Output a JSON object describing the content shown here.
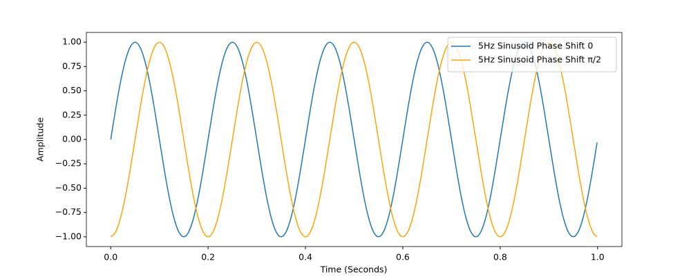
{
  "chart_data": {
    "type": "line",
    "xlabel": "Time (Seconds)",
    "ylabel": "Amplitude",
    "x": [
      0,
      0.01,
      0.02,
      0.03,
      0.04,
      0.05,
      0.06,
      0.07,
      0.08,
      0.09,
      0.1,
      0.11,
      0.12,
      0.13,
      0.14,
      0.15,
      0.16,
      0.17,
      0.18,
      0.19,
      0.2,
      0.21,
      0.22,
      0.23,
      0.24,
      0.25,
      0.26,
      0.27,
      0.28,
      0.29,
      0.3,
      0.31,
      0.32,
      0.33,
      0.34,
      0.35,
      0.36,
      0.37,
      0.38,
      0.39,
      0.4,
      0.41,
      0.42,
      0.43,
      0.44,
      0.45,
      0.46,
      0.47,
      0.48,
      0.49,
      0.5,
      0.51,
      0.52,
      0.53,
      0.54,
      0.55,
      0.56,
      0.57,
      0.58,
      0.59,
      0.6,
      0.61,
      0.62,
      0.63,
      0.64,
      0.65,
      0.66,
      0.67,
      0.68,
      0.69,
      0.7,
      0.71,
      0.72,
      0.73,
      0.74,
      0.75,
      0.76,
      0.77,
      0.78,
      0.79,
      0.8,
      0.81,
      0.82,
      0.83,
      0.84,
      0.85,
      0.86,
      0.87,
      0.88,
      0.89,
      0.9,
      0.91,
      0.92,
      0.93,
      0.94,
      0.95,
      0.96,
      0.97,
      0.98,
      0.99,
      0.999
    ],
    "series": [
      {
        "name": "5Hz Sinusoid Phase Shift 0",
        "color": "#1f77b4",
        "values": [
          0,
          0.309,
          0.588,
          0.809,
          0.951,
          1,
          0.951,
          0.809,
          0.588,
          0.309,
          0,
          -0.309,
          -0.588,
          -0.809,
          -0.951,
          -1,
          -0.951,
          -0.809,
          -0.588,
          -0.309,
          0,
          0.309,
          0.588,
          0.809,
          0.951,
          1,
          0.951,
          0.809,
          0.588,
          0.309,
          0,
          -0.309,
          -0.588,
          -0.809,
          -0.951,
          -1,
          -0.951,
          -0.809,
          -0.588,
          -0.309,
          0,
          0.309,
          0.588,
          0.809,
          0.951,
          1,
          0.951,
          0.809,
          0.588,
          0.309,
          0,
          -0.309,
          -0.588,
          -0.809,
          -0.951,
          -1,
          -0.951,
          -0.809,
          -0.588,
          -0.309,
          0,
          0.309,
          0.588,
          0.809,
          0.951,
          1,
          0.951,
          0.809,
          0.588,
          0.309,
          0,
          -0.309,
          -0.588,
          -0.809,
          -0.951,
          -1,
          -0.951,
          -0.809,
          -0.588,
          -0.309,
          0,
          0.309,
          0.588,
          0.809,
          0.951,
          1,
          0.951,
          0.809,
          0.588,
          0.309,
          0,
          -0.309,
          -0.588,
          -0.809,
          -0.951,
          -1,
          -0.951,
          -0.809,
          -0.588,
          -0.309,
          -0.031
        ]
      },
      {
        "name": "5Hz Sinusoid Phase Shift π/2",
        "color": "#ffa500",
        "values": [
          -1,
          -0.951,
          -0.809,
          -0.588,
          -0.309,
          0,
          0.309,
          0.588,
          0.809,
          0.951,
          1,
          0.951,
          0.809,
          0.588,
          0.309,
          0,
          -0.309,
          -0.588,
          -0.809,
          -0.951,
          -1,
          -0.951,
          -0.809,
          -0.588,
          -0.309,
          0,
          0.309,
          0.588,
          0.809,
          0.951,
          1,
          0.951,
          0.809,
          0.588,
          0.309,
          0,
          -0.309,
          -0.588,
          -0.809,
          -0.951,
          -1,
          -0.951,
          -0.809,
          -0.588,
          -0.309,
          0,
          0.309,
          0.588,
          0.809,
          0.951,
          1,
          0.951,
          0.809,
          0.588,
          0.309,
          0,
          -0.309,
          -0.588,
          -0.809,
          -0.951,
          -1,
          -0.951,
          -0.809,
          -0.588,
          -0.309,
          0,
          0.309,
          0.588,
          0.809,
          0.951,
          1,
          0.951,
          0.809,
          0.588,
          0.309,
          0,
          -0.309,
          -0.588,
          -0.809,
          -0.951,
          -1,
          -0.951,
          -0.809,
          -0.588,
          -0.309,
          0,
          0.309,
          0.588,
          0.809,
          0.951,
          1,
          0.951,
          0.809,
          0.588,
          0.309,
          0,
          -0.309,
          -0.588,
          -0.809,
          -0.951,
          -0.9995
        ]
      }
    ],
    "xlim": [
      -0.05,
      1.05
    ],
    "ylim": [
      -1.1,
      1.1
    ],
    "xticks": [
      {
        "value": 0,
        "label": "0.0"
      },
      0.2,
      0.4,
      0.6,
      0.8,
      {
        "value": 1,
        "label": "1.0"
      }
    ],
    "yticks": [
      {
        "value": -1,
        "label": "−1.00"
      },
      {
        "value": -0.75,
        "label": "−0.75"
      },
      {
        "value": -0.5,
        "label": "−0.50"
      },
      {
        "value": -0.25,
        "label": "−0.25"
      },
      {
        "value": 0,
        "label": "0.00"
      },
      {
        "value": 0.25,
        "label": "0.25"
      },
      {
        "value": 0.5,
        "label": "0.50"
      },
      {
        "value": 0.75,
        "label": "0.75"
      },
      {
        "value": 1,
        "label": "1.00"
      }
    ],
    "grid": false,
    "legend": "upper right"
  }
}
